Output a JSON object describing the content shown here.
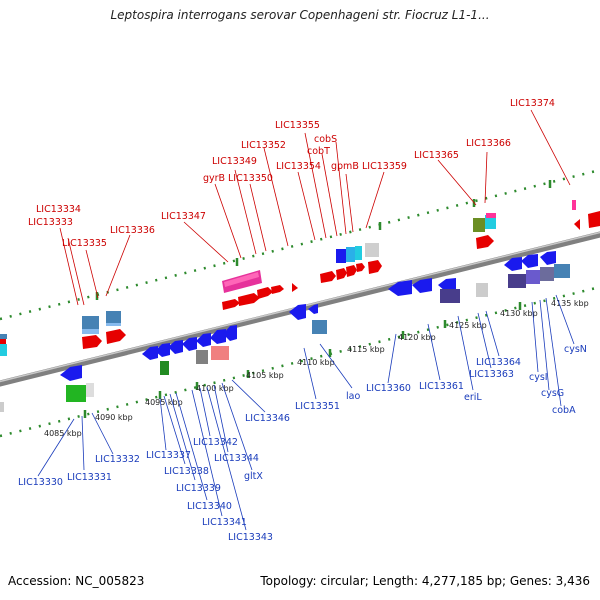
{
  "title": "Leptospira interrogans serovar Copenhageni str. Fiocruz L1-1...",
  "footer": {
    "accession": "Accession: NC_005823",
    "summary": "Topology: circular; Length: 4,277,185 bp; Genes: 3,436"
  },
  "colors": {
    "forward": "#e60000",
    "reverse": "#1a1aee",
    "backbone": "#909090",
    "tick": "#2d8a2d"
  },
  "scale_labels": [
    "4085 kbp",
    "4090 kbp",
    "4095 kbp",
    "4100 kbp",
    "4105 kbp",
    "4110 kbp",
    "4115 kbp",
    "4120 kbp",
    "4125 kbp",
    "4130 kbp",
    "4135 kbp"
  ],
  "forward_labels": [
    "LIC13333",
    "LIC13334",
    "LIC13335",
    "LIC13336",
    "LIC13347",
    "gyrB",
    "LIC13349",
    "LIC13350",
    "LIC13352",
    "LIC13354",
    "LIC13355",
    "cobT",
    "cobS",
    "gpmB",
    "LIC13359",
    "LIC13365",
    "LIC13366",
    "LIC13374"
  ],
  "reverse_labels": [
    "LIC13330",
    "LIC13331",
    "LIC13332",
    "LIC13337",
    "LIC13338",
    "LIC13339",
    "LIC13340",
    "LIC13341",
    "LIC13342",
    "LIC13343",
    "LIC13344",
    "gltX",
    "LIC13346",
    "LIC13351",
    "lao",
    "LIC13360",
    "LIC13361",
    "eriL",
    "LIC13363",
    "LIC13364",
    "cysI",
    "cysG",
    "cobA",
    "cysN"
  ]
}
